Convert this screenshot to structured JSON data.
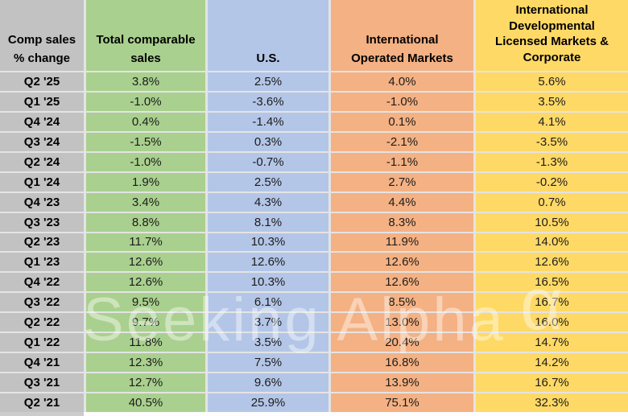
{
  "watermark": {
    "text": "Seeking Alpha",
    "alpha_symbol": "α"
  },
  "colors": {
    "row_label_bg": "#c2c2c2",
    "gridline": "#e4e4e4",
    "header_text": "#000000",
    "value_text": "#1c1c1c",
    "total_comparable_bg": "#a9d08e",
    "us_bg": "#b4c6e7",
    "international_operated_bg": "#f4b183",
    "international_dl_bg": "#ffd966"
  },
  "chart_data": {
    "type": "table",
    "title": "Comp sales % change",
    "corner_header_lines": [
      "Comp sales",
      "% change"
    ],
    "columns": [
      {
        "label": "Total comparable sales",
        "bg": "#a9d08e"
      },
      {
        "label": "U.S.",
        "bg": "#b4c6e7"
      },
      {
        "label": "International Operated Markets",
        "bg": "#f4b183"
      },
      {
        "label": "International Developmental Licensed Markets & Corporate",
        "bg": "#ffd966"
      }
    ],
    "rows": [
      {
        "label": "Q2 '25",
        "values": [
          "3.8%",
          "2.5%",
          "4.0%",
          "5.6%"
        ]
      },
      {
        "label": "Q1 '25",
        "values": [
          "-1.0%",
          "-3.6%",
          "-1.0%",
          "3.5%"
        ]
      },
      {
        "label": "Q4 '24",
        "values": [
          "0.4%",
          "-1.4%",
          "0.1%",
          "4.1%"
        ]
      },
      {
        "label": "Q3 '24",
        "values": [
          "-1.5%",
          "0.3%",
          "-2.1%",
          "-3.5%"
        ]
      },
      {
        "label": "Q2 '24",
        "values": [
          "-1.0%",
          "-0.7%",
          "-1.1%",
          "-1.3%"
        ]
      },
      {
        "label": "Q1 '24",
        "values": [
          "1.9%",
          "2.5%",
          "2.7%",
          "-0.2%"
        ]
      },
      {
        "label": "Q4 '23",
        "values": [
          "3.4%",
          "4.3%",
          "4.4%",
          "0.7%"
        ]
      },
      {
        "label": "Q3 '23",
        "values": [
          "8.8%",
          "8.1%",
          "8.3%",
          "10.5%"
        ]
      },
      {
        "label": "Q2 '23",
        "values": [
          "11.7%",
          "10.3%",
          "11.9%",
          "14.0%"
        ]
      },
      {
        "label": "Q1 '23",
        "values": [
          "12.6%",
          "12.6%",
          "12.6%",
          "12.6%"
        ]
      },
      {
        "label": "Q4 '22",
        "values": [
          "12.6%",
          "10.3%",
          "12.6%",
          "16.5%"
        ]
      },
      {
        "label": "Q3 '22",
        "values": [
          "9.5%",
          "6.1%",
          "8.5%",
          "16.7%"
        ]
      },
      {
        "label": "Q2 '22",
        "values": [
          "9.7%",
          "3.7%",
          "13.0%",
          "16.0%"
        ]
      },
      {
        "label": "Q1 '22",
        "values": [
          "11.8%",
          "3.5%",
          "20.4%",
          "14.7%"
        ]
      },
      {
        "label": "Q4 '21",
        "values": [
          "12.3%",
          "7.5%",
          "16.8%",
          "14.2%"
        ]
      },
      {
        "label": "Q3 '21",
        "values": [
          "12.7%",
          "9.6%",
          "13.9%",
          "16.7%"
        ]
      },
      {
        "label": "Q2 '21",
        "values": [
          "40.5%",
          "25.9%",
          "75.1%",
          "32.3%"
        ]
      }
    ]
  }
}
